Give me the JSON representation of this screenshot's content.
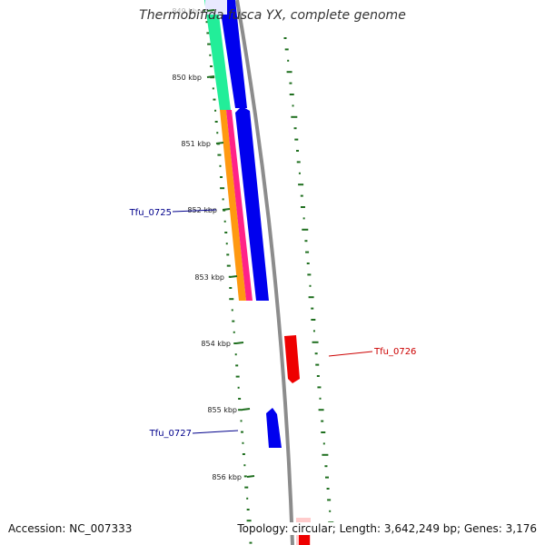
{
  "title": "Thermobifida fusca YX, complete genome",
  "footer": {
    "accession": "Accession: NC_007333",
    "summary": "Topology: circular; Length: 3,642,249 bp; Genes: 3,176"
  },
  "ticks": [
    {
      "label": "849 kbp"
    },
    {
      "label": "850 kbp"
    },
    {
      "label": "851 kbp"
    },
    {
      "label": "852 kbp"
    },
    {
      "label": "853 kbp"
    },
    {
      "label": "854 kbp"
    },
    {
      "label": "855 kbp"
    },
    {
      "label": "856 kbp"
    }
  ],
  "gene_labels": [
    {
      "name": "Tfu_0725",
      "color": "#00008b"
    },
    {
      "name": "Tfu_0726",
      "color": "#cc0000"
    },
    {
      "name": "Tfu_0727",
      "color": "#00008b"
    }
  ],
  "colors": {
    "backbone": "#8c8c8c",
    "gc_skew": "#1f6f1f",
    "cds_blue": "#0000ee",
    "cds_red": "#ee0000",
    "feature_cyan": "#22ee99",
    "feature_orange": "#ff9911",
    "feature_pink": "#ff2288"
  }
}
